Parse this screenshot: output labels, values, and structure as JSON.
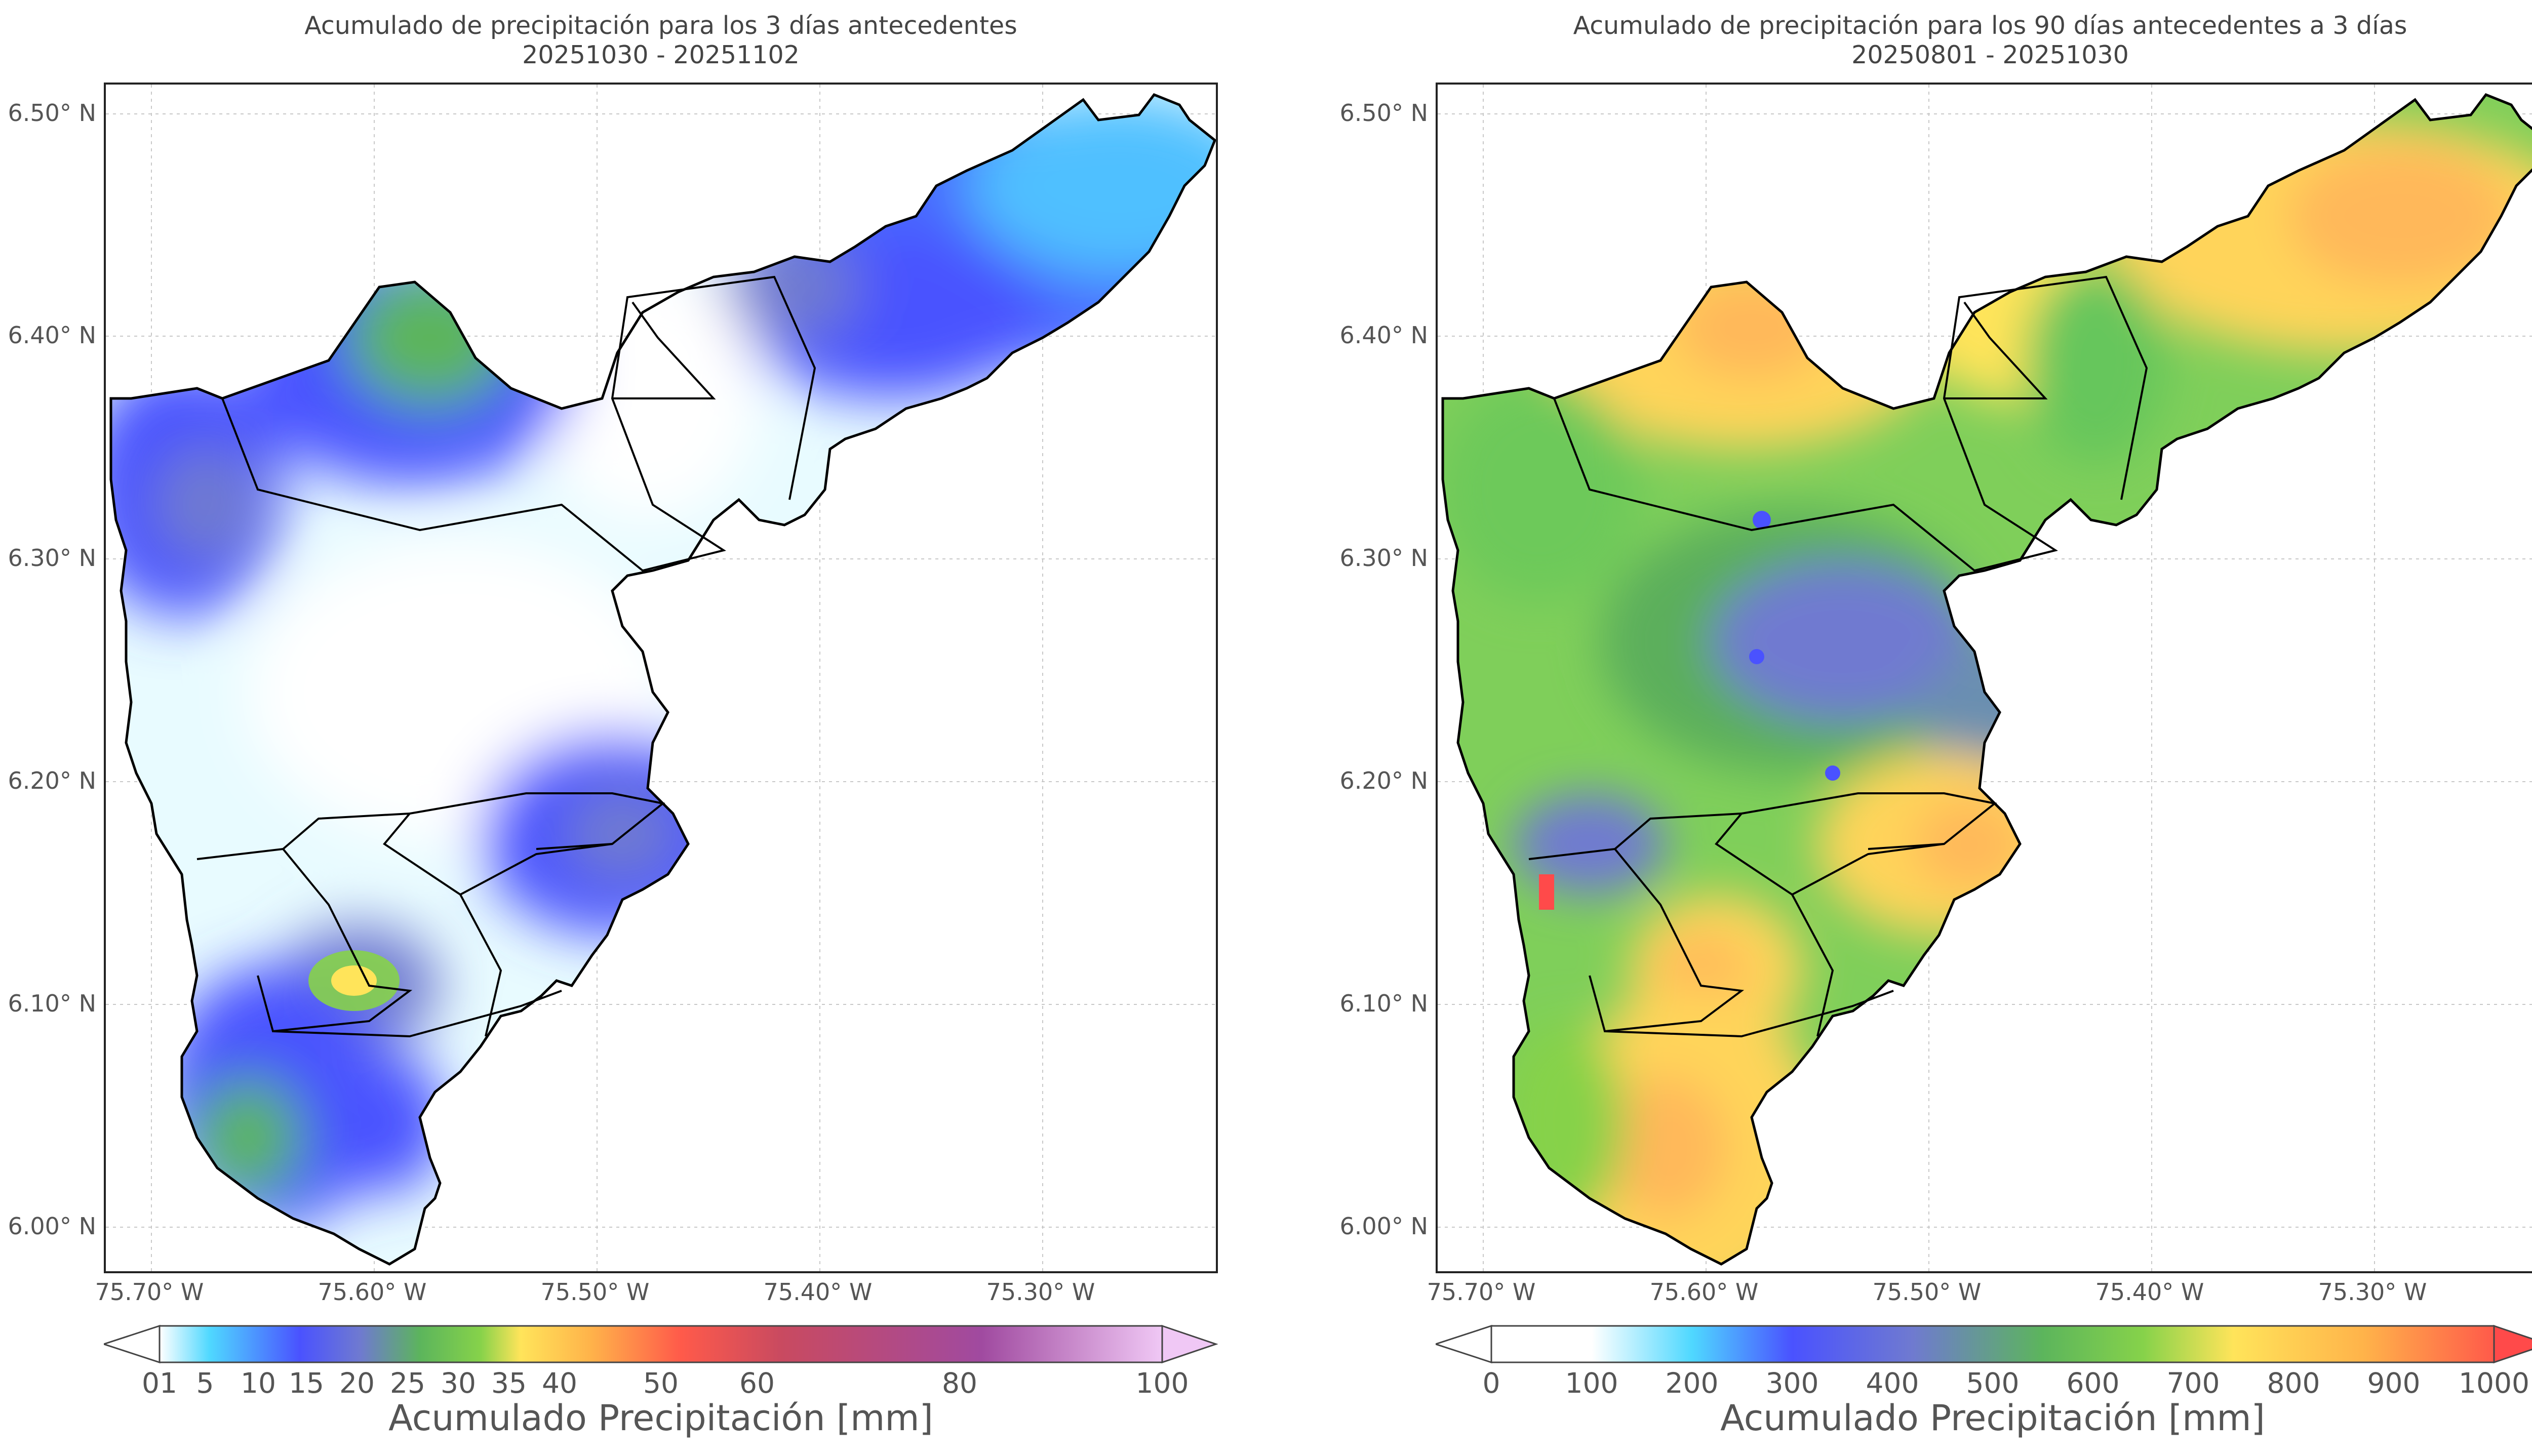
{
  "left_panel": {
    "title_line1": "Acumulado de precipitación para los 3 días antecedentes",
    "title_line2": "20251030 - 20251102",
    "colorbar_label": "Acumulado Precipitación [mm]",
    "colorbar_ticks": [
      "01",
      "5",
      "10",
      "15",
      "20",
      "25",
      "30",
      "35",
      "40",
      "50",
      "60",
      "80",
      "100"
    ]
  },
  "right_panel": {
    "title_line1": "Acumulado de precipitación para los 90 días antecedentes a 3 días",
    "title_line2": "20250801 - 20251030",
    "colorbar_label": "Acumulado Precipitación [mm]",
    "colorbar_ticks": [
      "0",
      "100",
      "200",
      "300",
      "400",
      "500",
      "600",
      "700",
      "800",
      "900",
      "1000"
    ]
  },
  "lat_labels": [
    "6.50° N",
    "6.40° N",
    "6.30° N",
    "6.20° N",
    "6.10° N",
    "6.00° N"
  ],
  "lon_labels": [
    "75.70° W",
    "75.60° W",
    "75.50° W",
    "75.40° W",
    "75.30° W"
  ],
  "colors": {
    "left_scale": [
      "#ffffff",
      "#4fd8ff",
      "#4a52ff",
      "#6f7ad0",
      "#5cb55c",
      "#86d24a",
      "#ffe45a",
      "#ffb34a",
      "#ff5a4a",
      "#c94a60",
      "#a04aa0",
      "#f0c8f5"
    ],
    "right_scale": [
      "#ffffff",
      "#4fd8ff",
      "#4a52ff",
      "#6f7ad0",
      "#5cb55c",
      "#86d24a",
      "#ffe45a",
      "#ffb34a",
      "#ff5a4a"
    ]
  }
}
